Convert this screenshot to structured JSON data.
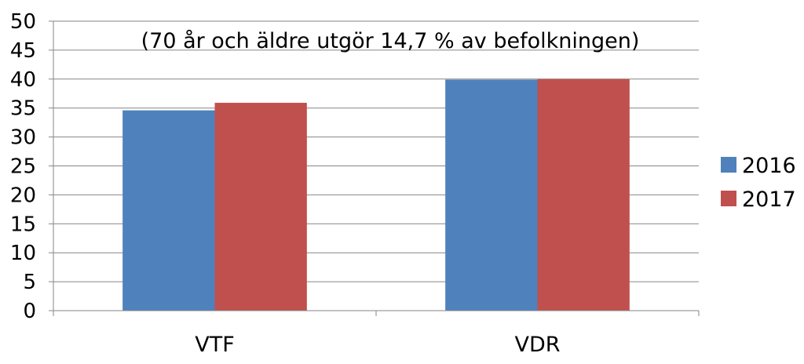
{
  "chart_data": {
    "type": "bar",
    "title": "",
    "annotation": "(70 år och äldre utgör 14,7 % av befolkningen)",
    "xlabel": "",
    "ylabel": "",
    "categories": [
      "VTF",
      "VDR"
    ],
    "series": [
      {
        "name": "2016",
        "values": [
          34.6,
          39.9
        ],
        "color": "#4F81BD"
      },
      {
        "name": "2017",
        "values": [
          35.9,
          40.0
        ],
        "color": "#C0504D"
      }
    ],
    "ylim": [
      0,
      50
    ],
    "yticks": [
      0,
      5,
      10,
      15,
      20,
      25,
      30,
      35,
      40,
      45,
      50
    ],
    "grid": true,
    "legend": "right"
  }
}
